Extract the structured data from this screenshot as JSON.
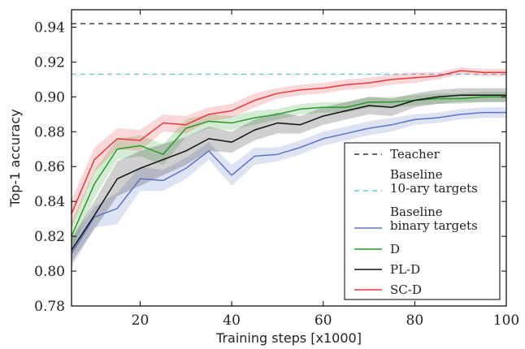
{
  "chart_data": {
    "type": "line",
    "xlabel": "Training steps [x1000]",
    "ylabel": "Top-1 accuracy",
    "xlim": [
      5,
      100
    ],
    "ylim": [
      0.78,
      0.95
    ],
    "xticks": [
      20,
      40,
      60,
      80,
      100
    ],
    "yticks": [
      0.78,
      0.8,
      0.82,
      0.84,
      0.86,
      0.88,
      0.9,
      0.92,
      0.94
    ],
    "grid": false,
    "legend_position": "lower-right",
    "x": [
      5,
      10,
      15,
      20,
      25,
      30,
      35,
      40,
      45,
      50,
      55,
      60,
      65,
      70,
      75,
      80,
      85,
      90,
      95,
      100
    ],
    "reference_lines": [
      {
        "name": "Teacher",
        "value": 0.942,
        "color": "#333333"
      },
      {
        "name": "Baseline\n10-ary targets",
        "value": 0.913,
        "color": "#6fc3e6"
      }
    ],
    "series": [
      {
        "name": "Baseline\nbinary targets",
        "color": "#5874c4",
        "values": [
          0.81,
          0.831,
          0.836,
          0.853,
          0.852,
          0.859,
          0.869,
          0.855,
          0.866,
          0.867,
          0.871,
          0.876,
          0.879,
          0.882,
          0.884,
          0.887,
          0.888,
          0.89,
          0.891,
          0.891
        ],
        "band": [
          0.008,
          0.006,
          0.009,
          0.007,
          0.006,
          0.006,
          0.005,
          0.006,
          0.005,
          0.004,
          0.004,
          0.004,
          0.004,
          0.004,
          0.004,
          0.003,
          0.003,
          0.003,
          0.003,
          0.003
        ]
      },
      {
        "name": "D",
        "color": "#2a9a2a",
        "values": [
          0.82,
          0.85,
          0.87,
          0.872,
          0.867,
          0.882,
          0.886,
          0.885,
          0.888,
          0.89,
          0.893,
          0.894,
          0.894,
          0.897,
          0.897,
          0.898,
          0.899,
          0.899,
          0.9,
          0.9
        ],
        "band": [
          0.008,
          0.008,
          0.006,
          0.006,
          0.006,
          0.005,
          0.004,
          0.004,
          0.004,
          0.003,
          0.003,
          0.003,
          0.003,
          0.003,
          0.003,
          0.003,
          0.003,
          0.003,
          0.003,
          0.003
        ]
      },
      {
        "name": "PL-D",
        "color": "#111111",
        "values": [
          0.812,
          0.832,
          0.853,
          0.859,
          0.864,
          0.869,
          0.876,
          0.874,
          0.881,
          0.885,
          0.884,
          0.889,
          0.892,
          0.895,
          0.894,
          0.898,
          0.9,
          0.901,
          0.901,
          0.901
        ],
        "band": [
          0.007,
          0.008,
          0.01,
          0.01,
          0.009,
          0.008,
          0.007,
          0.006,
          0.006,
          0.006,
          0.005,
          0.005,
          0.005,
          0.005,
          0.005,
          0.004,
          0.004,
          0.004,
          0.004,
          0.004
        ]
      },
      {
        "name": "SC-D",
        "color": "#e8383b",
        "values": [
          0.833,
          0.864,
          0.876,
          0.875,
          0.885,
          0.884,
          0.89,
          0.892,
          0.898,
          0.902,
          0.904,
          0.905,
          0.907,
          0.908,
          0.91,
          0.911,
          0.912,
          0.915,
          0.914,
          0.914
        ],
        "band": [
          0.008,
          0.007,
          0.006,
          0.006,
          0.005,
          0.005,
          0.004,
          0.004,
          0.004,
          0.003,
          0.003,
          0.003,
          0.003,
          0.003,
          0.003,
          0.003,
          0.002,
          0.002,
          0.002,
          0.002
        ]
      }
    ]
  }
}
